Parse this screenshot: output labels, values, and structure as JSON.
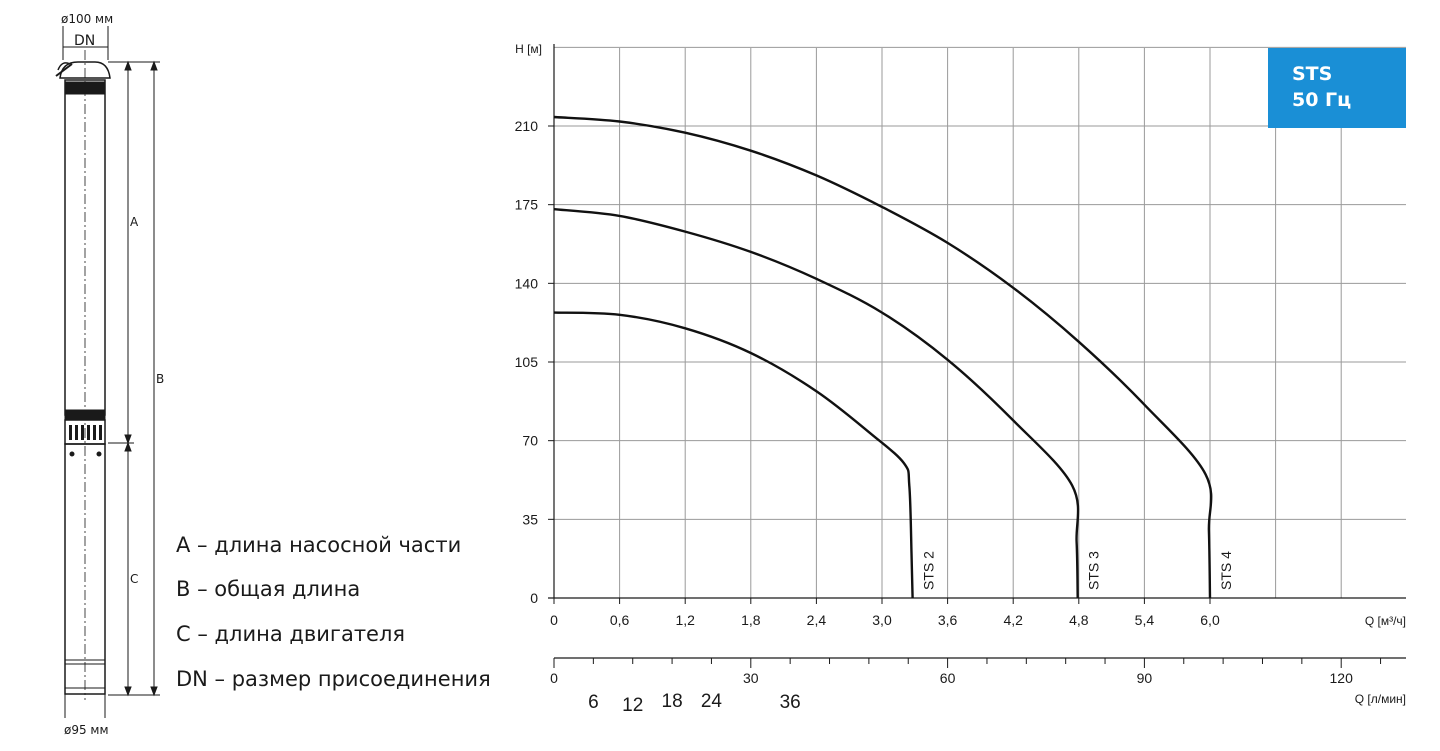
{
  "drawing": {
    "top_diameter": "ø100 мм",
    "dn_label": "DN",
    "label_a": "A",
    "label_b": "B",
    "label_c": "C",
    "bottom_diameter": "ø95 мм"
  },
  "legend": [
    "A – длина насосной части",
    "B – общая длина",
    "C – длина двигателя",
    "DN – размер присоединения"
  ],
  "badge": {
    "line1": "STS",
    "line2": "50 Гц"
  },
  "chart_data": {
    "type": "line",
    "ylabel": "H [м]",
    "xlabel": "Q [м³/ч]",
    "xlim": [
      0,
      7.8
    ],
    "ylim": [
      0,
      245
    ],
    "yticks": [
      0,
      35,
      70,
      105,
      140,
      175,
      210
    ],
    "xticks": [
      "0",
      "0,6",
      "1,2",
      "1,8",
      "2,4",
      "3,0",
      "3,6",
      "4,2",
      "4,8",
      "5,4",
      "6,0"
    ],
    "xtick_values": [
      0,
      0.6,
      1.2,
      1.8,
      2.4,
      3.0,
      3.6,
      4.2,
      4.8,
      5.4,
      6.0
    ],
    "grid": true,
    "series": [
      {
        "name": "STS 2",
        "x": [
          0,
          0.6,
          1.2,
          1.8,
          2.4,
          2.9,
          3.2,
          3.25,
          3.27,
          3.28
        ],
        "y": [
          127,
          126,
          120,
          109,
          92,
          73,
          60,
          50,
          20,
          0
        ]
      },
      {
        "name": "STS 3",
        "x": [
          0,
          0.6,
          1.2,
          1.8,
          2.4,
          3.0,
          3.6,
          4.2,
          4.74,
          4.78,
          4.79
        ],
        "y": [
          173,
          170,
          163,
          154,
          142,
          127,
          106,
          79,
          50,
          25,
          0
        ]
      },
      {
        "name": "STS 4",
        "x": [
          0,
          0.6,
          1.2,
          1.8,
          2.4,
          3.0,
          3.6,
          4.2,
          4.8,
          5.4,
          5.96,
          5.99,
          6.0
        ],
        "y": [
          214,
          212,
          207,
          199,
          188,
          174,
          158,
          138,
          114,
          86,
          55,
          30,
          0
        ]
      }
    ],
    "secondary_axis": {
      "label": "Q [л/мин]",
      "ticks": [
        "0",
        "30",
        "60",
        "90",
        "120"
      ],
      "tick_values": [
        0,
        30,
        60,
        90,
        120
      ],
      "scale_to_primary": 0.06,
      "extra_labels": [
        "6",
        "12",
        "18",
        "24",
        "36"
      ],
      "extra_values": [
        6,
        12,
        18,
        24,
        36
      ]
    }
  }
}
